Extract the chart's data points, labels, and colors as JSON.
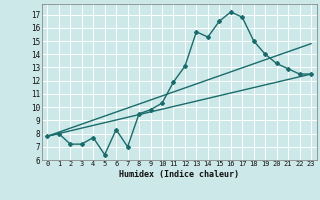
{
  "xlabel": "Humidex (Indice chaleur)",
  "bg_color": "#cde8e8",
  "line_color": "#1a6b6b",
  "xlim": [
    -0.5,
    23.5
  ],
  "ylim": [
    6,
    17.8
  ],
  "xticks": [
    0,
    1,
    2,
    3,
    4,
    5,
    6,
    7,
    8,
    9,
    10,
    11,
    12,
    13,
    14,
    15,
    16,
    17,
    18,
    19,
    20,
    21,
    22,
    23
  ],
  "yticks": [
    6,
    7,
    8,
    9,
    10,
    11,
    12,
    13,
    14,
    15,
    16,
    17
  ],
  "series1_x": [
    0,
    1,
    2,
    3,
    4,
    5,
    6,
    7,
    8,
    9,
    10,
    11,
    12,
    13,
    14,
    15,
    16,
    17,
    18,
    19,
    20,
    21,
    22,
    23
  ],
  "series1_y": [
    7.8,
    8.0,
    7.2,
    7.2,
    7.7,
    6.4,
    8.3,
    7.0,
    9.5,
    9.8,
    10.3,
    11.9,
    13.1,
    15.7,
    15.3,
    16.5,
    17.2,
    16.8,
    15.0,
    14.0,
    13.3,
    12.9,
    12.5,
    12.5
  ],
  "series2_x": [
    0,
    23
  ],
  "series2_y": [
    7.8,
    12.5
  ],
  "series3_x": [
    0,
    23
  ],
  "series3_y": [
    7.8,
    14.8
  ]
}
